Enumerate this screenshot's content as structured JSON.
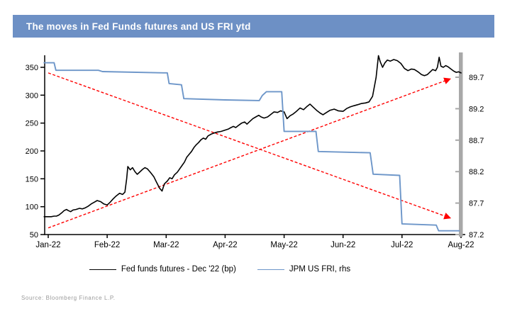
{
  "header": {
    "title": "The moves in Fed Funds futures and US FRI ytd",
    "bar_color": "#6D90C5"
  },
  "source": {
    "text": "Source: Bloomberg Finance L.P."
  },
  "chart_data": {
    "type": "line",
    "title": "The moves in Fed Funds futures and US FRI ytd",
    "x_tick_labels": [
      "Jan-22",
      "Feb-22",
      "Mar-22",
      "Apr-22",
      "May-22",
      "Jun-22",
      "Jul-22",
      "Aug-22"
    ],
    "x_range_months": [
      0,
      7
    ],
    "left_axis": {
      "ticks": [
        50,
        100,
        150,
        200,
        250,
        300,
        350
      ],
      "min": 50,
      "max": 350
    },
    "right_axis": {
      "ticks": [
        87.2,
        87.7,
        88.2,
        88.7,
        89.2,
        89.7
      ],
      "min": 87.2,
      "max": 89.7,
      "bar_color": "#A8A8A8"
    },
    "grid": false,
    "legend_position": "bottom",
    "series": [
      {
        "name": "Fed funds futures - Dec '22 (bp)",
        "axis": "left",
        "color": "#000000",
        "width": 1.6,
        "points": [
          [
            -0.07,
            82
          ],
          [
            0.05,
            82
          ],
          [
            0.1,
            83
          ],
          [
            0.14,
            83
          ],
          [
            0.18,
            85
          ],
          [
            0.23,
            89
          ],
          [
            0.27,
            93
          ],
          [
            0.31,
            95
          ],
          [
            0.34,
            93
          ],
          [
            0.38,
            91
          ],
          [
            0.42,
            94
          ],
          [
            0.47,
            95
          ],
          [
            0.53,
            97
          ],
          [
            0.58,
            96
          ],
          [
            0.63,
            98
          ],
          [
            0.68,
            101
          ],
          [
            0.73,
            105
          ],
          [
            0.78,
            108
          ],
          [
            0.83,
            111
          ],
          [
            0.89,
            109
          ],
          [
            0.94,
            105
          ],
          [
            1.0,
            103
          ],
          [
            1.05,
            108
          ],
          [
            1.1,
            114
          ],
          [
            1.15,
            119
          ],
          [
            1.21,
            124
          ],
          [
            1.26,
            122
          ],
          [
            1.3,
            126
          ],
          [
            1.33,
            150
          ],
          [
            1.35,
            172
          ],
          [
            1.39,
            166
          ],
          [
            1.43,
            170
          ],
          [
            1.47,
            163
          ],
          [
            1.51,
            158
          ],
          [
            1.55,
            162
          ],
          [
            1.6,
            167
          ],
          [
            1.64,
            170
          ],
          [
            1.68,
            168
          ],
          [
            1.73,
            162
          ],
          [
            1.79,
            154
          ],
          [
            1.84,
            143
          ],
          [
            1.89,
            133
          ],
          [
            1.93,
            128
          ],
          [
            1.97,
            141
          ],
          [
            2.02,
            146
          ],
          [
            2.06,
            152
          ],
          [
            2.1,
            150
          ],
          [
            2.14,
            157
          ],
          [
            2.19,
            162
          ],
          [
            2.23,
            168
          ],
          [
            2.27,
            174
          ],
          [
            2.31,
            180
          ],
          [
            2.35,
            189
          ],
          [
            2.39,
            194
          ],
          [
            2.43,
            199
          ],
          [
            2.47,
            206
          ],
          [
            2.51,
            211
          ],
          [
            2.55,
            215
          ],
          [
            2.59,
            220
          ],
          [
            2.63,
            223
          ],
          [
            2.67,
            221
          ],
          [
            2.71,
            227
          ],
          [
            2.76,
            230
          ],
          [
            2.81,
            232
          ],
          [
            2.87,
            234
          ],
          [
            2.93,
            235
          ],
          [
            2.99,
            237
          ],
          [
            3.05,
            239
          ],
          [
            3.1,
            242
          ],
          [
            3.14,
            244
          ],
          [
            3.18,
            242
          ],
          [
            3.23,
            246
          ],
          [
            3.28,
            250
          ],
          [
            3.33,
            252
          ],
          [
            3.37,
            248
          ],
          [
            3.42,
            253
          ],
          [
            3.47,
            258
          ],
          [
            3.52,
            261
          ],
          [
            3.57,
            264
          ],
          [
            3.61,
            261
          ],
          [
            3.66,
            259
          ],
          [
            3.72,
            261
          ],
          [
            3.78,
            266
          ],
          [
            3.83,
            270
          ],
          [
            3.89,
            269
          ],
          [
            3.94,
            272
          ],
          [
            4.0,
            270
          ],
          [
            4.05,
            258
          ],
          [
            4.1,
            263
          ],
          [
            4.15,
            266
          ],
          [
            4.21,
            271
          ],
          [
            4.27,
            277
          ],
          [
            4.33,
            274
          ],
          [
            4.39,
            280
          ],
          [
            4.44,
            284
          ],
          [
            4.49,
            279
          ],
          [
            4.55,
            273
          ],
          [
            4.61,
            268
          ],
          [
            4.66,
            265
          ],
          [
            4.72,
            269
          ],
          [
            4.78,
            273
          ],
          [
            4.85,
            275
          ],
          [
            4.92,
            272
          ],
          [
            5.0,
            271
          ],
          [
            5.06,
            276
          ],
          [
            5.12,
            279
          ],
          [
            5.18,
            281
          ],
          [
            5.25,
            283
          ],
          [
            5.31,
            285
          ],
          [
            5.38,
            286
          ],
          [
            5.44,
            288
          ],
          [
            5.5,
            298
          ],
          [
            5.56,
            332
          ],
          [
            5.6,
            371
          ],
          [
            5.63,
            360
          ],
          [
            5.67,
            350
          ],
          [
            5.71,
            358
          ],
          [
            5.75,
            363
          ],
          [
            5.8,
            361
          ],
          [
            5.86,
            364
          ],
          [
            5.92,
            362
          ],
          [
            5.98,
            357
          ],
          [
            6.04,
            348
          ],
          [
            6.1,
            344
          ],
          [
            6.16,
            347
          ],
          [
            6.21,
            346
          ],
          [
            6.27,
            342
          ],
          [
            6.33,
            337
          ],
          [
            6.38,
            335
          ],
          [
            6.43,
            337
          ],
          [
            6.48,
            342
          ],
          [
            6.52,
            346
          ],
          [
            6.57,
            344
          ],
          [
            6.6,
            350
          ],
          [
            6.63,
            368
          ],
          [
            6.66,
            352
          ],
          [
            6.7,
            350
          ],
          [
            6.74,
            353
          ],
          [
            6.78,
            351
          ],
          [
            6.83,
            347
          ],
          [
            6.88,
            343
          ],
          [
            6.92,
            341
          ],
          [
            6.96,
            342
          ],
          [
            7.0,
            340
          ]
        ]
      },
      {
        "name": "JPM US FRI, rhs",
        "axis": "right",
        "color": "#6D96C9",
        "width": 1.9,
        "points": [
          [
            -0.07,
            89.93
          ],
          [
            0.1,
            89.93
          ],
          [
            0.13,
            89.81
          ],
          [
            0.85,
            89.81
          ],
          [
            0.92,
            89.79
          ],
          [
            1.95,
            89.77
          ],
          [
            2.02,
            89.77
          ],
          [
            2.05,
            89.6
          ],
          [
            2.26,
            89.58
          ],
          [
            2.3,
            89.36
          ],
          [
            3.0,
            89.34
          ],
          [
            3.58,
            89.33
          ],
          [
            3.63,
            89.41
          ],
          [
            3.7,
            89.47
          ],
          [
            3.96,
            89.47
          ],
          [
            4.0,
            88.84
          ],
          [
            4.54,
            88.84
          ],
          [
            4.58,
            88.52
          ],
          [
            5.46,
            88.5
          ],
          [
            5.51,
            88.16
          ],
          [
            5.96,
            88.14
          ],
          [
            6.0,
            87.37
          ],
          [
            6.58,
            87.35
          ],
          [
            6.62,
            87.26
          ],
          [
            6.97,
            87.26
          ]
        ]
      }
    ],
    "trend_arrows": [
      {
        "axis": "left",
        "color": "#FF0000",
        "from": [
          0,
          340
        ],
        "to": [
          6.81,
          80
        ]
      },
      {
        "axis": "left",
        "color": "#FF0000",
        "from": [
          0,
          62
        ],
        "to": [
          6.81,
          329
        ]
      }
    ]
  }
}
